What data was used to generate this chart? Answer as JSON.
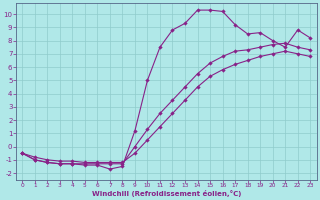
{
  "xlabel": "Windchill (Refroidissement éolien,°C)",
  "bg_color": "#b0e8e8",
  "grid_color": "#90cccc",
  "line_color": "#882288",
  "spine_color": "#556688",
  "xlim": [
    -0.5,
    23.5
  ],
  "ylim": [
    -2.5,
    10.8
  ],
  "xticks": [
    0,
    1,
    2,
    3,
    4,
    5,
    6,
    7,
    8,
    9,
    10,
    11,
    12,
    13,
    14,
    15,
    16,
    17,
    18,
    19,
    20,
    21,
    22,
    23
  ],
  "yticks": [
    -2,
    -1,
    0,
    1,
    2,
    3,
    4,
    5,
    6,
    7,
    8,
    9,
    10
  ],
  "curve1_x": [
    0,
    1,
    2,
    3,
    4,
    5,
    6,
    7,
    8,
    9,
    10,
    11,
    12,
    13,
    14,
    15,
    16,
    17,
    18,
    19,
    20,
    21,
    22,
    23
  ],
  "curve1_y": [
    -0.5,
    -1.0,
    -1.2,
    -1.3,
    -1.3,
    -1.4,
    -1.4,
    -1.7,
    -1.5,
    1.2,
    5.0,
    7.5,
    8.8,
    9.3,
    10.3,
    10.3,
    10.2,
    9.2,
    8.5,
    8.6,
    8.0,
    7.5,
    8.8,
    8.2
  ],
  "curve2_x": [
    0,
    1,
    2,
    3,
    4,
    5,
    6,
    7,
    8,
    9,
    10,
    11,
    12,
    13,
    14,
    15,
    16,
    17,
    18,
    19,
    20,
    21,
    22,
    23
  ],
  "curve2_y": [
    -0.5,
    -1.0,
    -1.2,
    -1.3,
    -1.3,
    -1.3,
    -1.3,
    -1.3,
    -1.3,
    0.0,
    1.3,
    2.5,
    3.5,
    4.5,
    5.5,
    6.3,
    6.8,
    7.2,
    7.3,
    7.5,
    7.7,
    7.8,
    7.5,
    7.3
  ],
  "curve3_x": [
    0,
    1,
    2,
    3,
    4,
    5,
    6,
    7,
    8,
    9,
    10,
    11,
    12,
    13,
    14,
    15,
    16,
    17,
    18,
    19,
    20,
    21,
    22,
    23
  ],
  "curve3_y": [
    -0.5,
    -0.8,
    -1.0,
    -1.1,
    -1.1,
    -1.2,
    -1.2,
    -1.2,
    -1.2,
    -0.5,
    0.5,
    1.5,
    2.5,
    3.5,
    4.5,
    5.3,
    5.8,
    6.2,
    6.5,
    6.8,
    7.0,
    7.2,
    7.0,
    6.8
  ]
}
